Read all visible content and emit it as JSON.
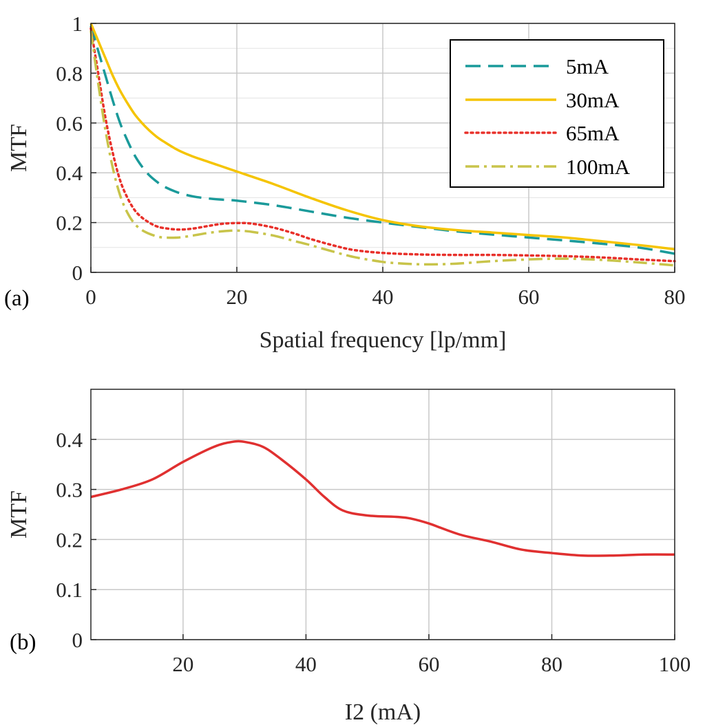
{
  "chart_data": [
    {
      "type": "line",
      "panel_label": "(a)",
      "title": "",
      "xlabel": "Spatial frequency [lp/mm]",
      "ylabel": "MTF",
      "xlim": [
        0,
        80
      ],
      "ylim": [
        0,
        1
      ],
      "xticks": [
        "0",
        "20",
        "40",
        "60",
        "80"
      ],
      "yticks": [
        "0",
        "0.2",
        "0.4",
        "0.6",
        "0.8",
        "1"
      ],
      "grid": true,
      "legend_position": "top-right",
      "series": [
        {
          "name": "5mA",
          "color": "#1a9a9a",
          "style": "dashed",
          "x": [
            0,
            1,
            2,
            3,
            4,
            5,
            6,
            7,
            8,
            9,
            10,
            12,
            14,
            16,
            18,
            20,
            25,
            30,
            35,
            40,
            45,
            50,
            55,
            60,
            65,
            70,
            75,
            80
          ],
          "y": [
            0.99,
            0.89,
            0.79,
            0.69,
            0.6,
            0.53,
            0.47,
            0.425,
            0.39,
            0.365,
            0.345,
            0.32,
            0.305,
            0.297,
            0.292,
            0.288,
            0.27,
            0.245,
            0.22,
            0.2,
            0.182,
            0.165,
            0.152,
            0.14,
            0.128,
            0.115,
            0.1,
            0.075
          ]
        },
        {
          "name": "30mA",
          "color": "#f5c400",
          "style": "solid",
          "x": [
            0,
            1,
            2,
            3,
            4,
            5,
            6,
            7,
            8,
            9,
            10,
            12,
            14,
            16,
            18,
            20,
            25,
            30,
            35,
            40,
            45,
            50,
            55,
            60,
            65,
            70,
            75,
            80
          ],
          "y": [
            1.0,
            0.93,
            0.86,
            0.79,
            0.73,
            0.68,
            0.635,
            0.6,
            0.57,
            0.545,
            0.525,
            0.49,
            0.465,
            0.445,
            0.425,
            0.405,
            0.355,
            0.3,
            0.25,
            0.21,
            0.185,
            0.17,
            0.16,
            0.15,
            0.14,
            0.125,
            0.11,
            0.093
          ]
        },
        {
          "name": "65mA",
          "color": "#e8302a",
          "style": "dotted",
          "x": [
            0,
            1,
            2,
            3,
            4,
            5,
            6,
            7,
            8,
            9,
            10,
            12,
            14,
            16,
            18,
            20,
            22,
            25,
            28,
            30,
            33,
            36,
            40,
            45,
            50,
            55,
            60,
            65,
            70,
            75,
            80
          ],
          "y": [
            0.98,
            0.8,
            0.62,
            0.48,
            0.37,
            0.3,
            0.25,
            0.22,
            0.2,
            0.185,
            0.178,
            0.172,
            0.176,
            0.186,
            0.195,
            0.198,
            0.196,
            0.18,
            0.155,
            0.135,
            0.11,
            0.09,
            0.078,
            0.072,
            0.07,
            0.07,
            0.068,
            0.065,
            0.06,
            0.052,
            0.045
          ]
        },
        {
          "name": "100mA",
          "color": "#c8c44a",
          "style": "dashdot",
          "x": [
            0,
            1,
            2,
            3,
            4,
            5,
            6,
            7,
            8,
            9,
            10,
            12,
            14,
            16,
            18,
            20,
            22,
            25,
            28,
            30,
            33,
            36,
            40,
            43,
            46,
            50,
            55,
            60,
            65,
            70,
            75,
            80
          ],
          "y": [
            0.97,
            0.76,
            0.57,
            0.42,
            0.31,
            0.24,
            0.195,
            0.17,
            0.155,
            0.145,
            0.14,
            0.14,
            0.148,
            0.158,
            0.165,
            0.168,
            0.163,
            0.148,
            0.125,
            0.11,
            0.085,
            0.062,
            0.042,
            0.035,
            0.032,
            0.035,
            0.045,
            0.052,
            0.055,
            0.05,
            0.04,
            0.028
          ]
        }
      ]
    },
    {
      "type": "line",
      "panel_label": "(b)",
      "title": "",
      "xlabel": "I2 (mA)",
      "ylabel": "MTF",
      "xlim": [
        5,
        100
      ],
      "ylim": [
        0,
        0.5
      ],
      "xticks": [
        "20",
        "40",
        "60",
        "80",
        "100"
      ],
      "yticks": [
        "0",
        "0.1",
        "0.2",
        "0.3",
        "0.4"
      ],
      "grid": true,
      "series": [
        {
          "name": "MTF",
          "color": "#e03030",
          "style": "solid",
          "x": [
            5,
            10,
            15,
            20,
            25,
            28,
            30,
            33,
            36,
            40,
            43,
            46,
            50,
            55,
            57,
            60,
            65,
            70,
            75,
            80,
            85,
            90,
            95,
            100
          ],
          "y": [
            0.285,
            0.3,
            0.32,
            0.355,
            0.385,
            0.395,
            0.395,
            0.385,
            0.36,
            0.32,
            0.285,
            0.258,
            0.248,
            0.245,
            0.242,
            0.232,
            0.21,
            0.196,
            0.18,
            0.173,
            0.168,
            0.168,
            0.17,
            0.17
          ]
        }
      ]
    }
  ]
}
